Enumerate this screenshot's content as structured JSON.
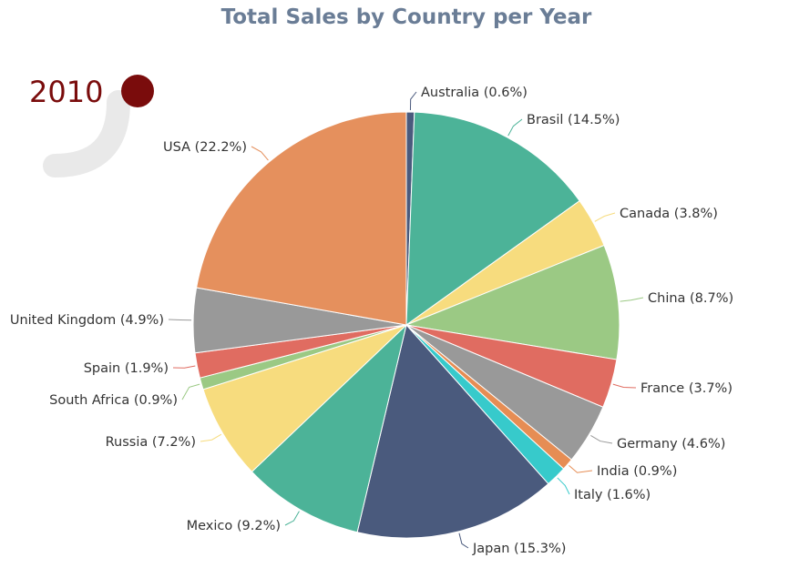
{
  "title": "Total Sales by Country per Year",
  "year_slider": {
    "current_year": "2010",
    "track_color": "#e9e9e9",
    "thumb_color": "#7a0c0c"
  },
  "chart_data": {
    "type": "pie",
    "title": "Total Sales by Country per Year",
    "slices": [
      {
        "label": "Australia (0.6%)",
        "value": 0.6,
        "color": "#4a5a7d"
      },
      {
        "label": "Brasil (14.5%)",
        "value": 14.5,
        "color": "#4cb398"
      },
      {
        "label": "Canada (3.8%)",
        "value": 3.8,
        "color": "#f7dc7e"
      },
      {
        "label": "China (8.7%)",
        "value": 8.7,
        "color": "#9bc984"
      },
      {
        "label": "France (3.7%)",
        "value": 3.7,
        "color": "#e06c61"
      },
      {
        "label": "Germany (4.6%)",
        "value": 4.6,
        "color": "#999999"
      },
      {
        "label": "India (0.9%)",
        "value": 0.9,
        "color": "#e68d54"
      },
      {
        "label": "Italy (1.6%)",
        "value": 1.6,
        "color": "#37cacb"
      },
      {
        "label": "Japan (15.3%)",
        "value": 15.3,
        "color": "#4a5a7d"
      },
      {
        "label": "Mexico (9.2%)",
        "value": 9.2,
        "color": "#4cb398"
      },
      {
        "label": "Russia (7.2%)",
        "value": 7.2,
        "color": "#f7dc7e"
      },
      {
        "label": "South Africa (0.9%)",
        "value": 0.9,
        "color": "#9bc984"
      },
      {
        "label": "Spain (1.9%)",
        "value": 1.9,
        "color": "#e06c61"
      },
      {
        "label": "United Kingdom (4.9%)",
        "value": 4.9,
        "color": "#999999"
      },
      {
        "label": "USA (22.2%)",
        "value": 22.2,
        "color": "#e5905d"
      }
    ]
  }
}
